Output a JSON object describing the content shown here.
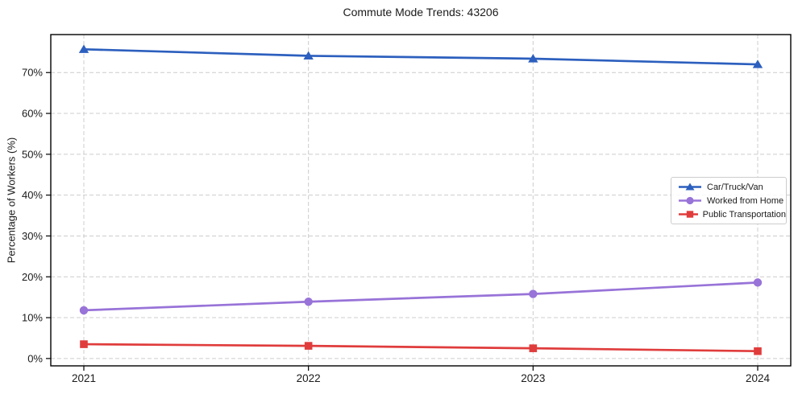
{
  "chart_data": {
    "type": "line",
    "title": "Commute Mode Trends: 43206",
    "xlabel": "",
    "ylabel": "Percentage of Workers (%)",
    "x": [
      2021,
      2022,
      2023,
      2024
    ],
    "xtick_labels": [
      "2021",
      "2022",
      "2023",
      "2024"
    ],
    "yticks": [
      0,
      10,
      20,
      30,
      40,
      50,
      60,
      70
    ],
    "ytick_labels": [
      "0%",
      "10%",
      "20%",
      "30%",
      "40%",
      "50%",
      "60%",
      "70%"
    ],
    "ylim": [
      -1.8,
      79.3
    ],
    "grid": true,
    "grid_style": "dashed",
    "legend_position": "center right",
    "series": [
      {
        "name": "Car/Truck/Van",
        "color": "#2c5fbe",
        "marker": "triangle",
        "values": [
          75.7,
          74.1,
          73.4,
          72.0
        ]
      },
      {
        "name": "Worked from Home",
        "color": "#9873d8",
        "marker": "circle",
        "values": [
          11.8,
          13.9,
          15.8,
          18.6
        ]
      },
      {
        "name": "Public Transportation",
        "color": "#e03c3c",
        "marker": "square",
        "values": [
          3.5,
          3.1,
          2.5,
          1.8
        ]
      }
    ]
  },
  "colors": {
    "background": "#ffffff",
    "grid": "#cccccc",
    "spine": "#000000",
    "text": "#1a1a1a",
    "legend_border": "#cccccc"
  }
}
